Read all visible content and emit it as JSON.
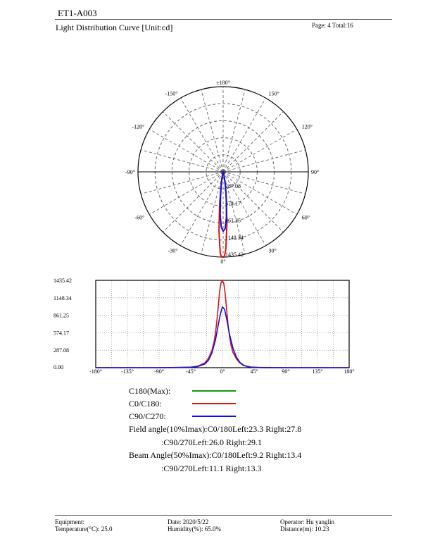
{
  "header": {
    "code": "ET1-A003",
    "title": "Light Distribution Curve [Unit:cd]",
    "page": "Page: 4  Total:16"
  },
  "chart_data": [
    {
      "type": "polar",
      "angle_labels": [
        {
          "deg": 180,
          "label": "±180°"
        },
        {
          "deg": 150,
          "label": "150°"
        },
        {
          "deg": 120,
          "label": "120°"
        },
        {
          "deg": 90,
          "label": "90°"
        },
        {
          "deg": 60,
          "label": "60°"
        },
        {
          "deg": 30,
          "label": "30°"
        },
        {
          "deg": 0,
          "label": "0°"
        },
        {
          "deg": -30,
          "label": "-30°"
        },
        {
          "deg": -60,
          "label": "-60°"
        },
        {
          "deg": -90,
          "label": "-90°"
        },
        {
          "deg": -120,
          "label": "-120°"
        },
        {
          "deg": -150,
          "label": "-150°"
        }
      ],
      "radial_labels": [
        "287.08",
        "574.17",
        "861.25",
        "1148.34",
        "1435.42"
      ],
      "rmax": 1435.42,
      "grid": true,
      "series": [
        {
          "name": "C0/C180",
          "color": "#dd1111",
          "points": [
            [
              -20,
              0
            ],
            [
              -15,
              30
            ],
            [
              -10,
              160
            ],
            [
              -8,
              300
            ],
            [
              -6,
              580
            ],
            [
              -4,
              1000
            ],
            [
              -2,
              1380
            ],
            [
              -1,
              1432
            ],
            [
              0,
              1435.42
            ],
            [
              1,
              1410
            ],
            [
              2,
              1300
            ],
            [
              4,
              900
            ],
            [
              6,
              550
            ],
            [
              8,
              320
            ],
            [
              10,
              190
            ],
            [
              14,
              70
            ],
            [
              20,
              15
            ],
            [
              25,
              0
            ]
          ]
        },
        {
          "name": "C90/C270",
          "color": "#1111dd",
          "points": [
            [
              -18,
              0
            ],
            [
              -14,
              30
            ],
            [
              -10,
              120
            ],
            [
              -8,
              230
            ],
            [
              -6,
              420
            ],
            [
              -4,
              720
            ],
            [
              -2,
              930
            ],
            [
              0,
              1000
            ],
            [
              2,
              960
            ],
            [
              4,
              780
            ],
            [
              6,
              520
            ],
            [
              8,
              320
            ],
            [
              10,
              180
            ],
            [
              14,
              60
            ],
            [
              18,
              10
            ],
            [
              22,
              0
            ]
          ]
        }
      ]
    },
    {
      "type": "line",
      "x_ticks": [
        {
          "v": -180,
          "label": "-180°"
        },
        {
          "v": -135,
          "label": "-135°"
        },
        {
          "v": -90,
          "label": "-90°"
        },
        {
          "v": -45,
          "label": "-45°"
        },
        {
          "v": 0,
          "label": "0°"
        },
        {
          "v": 45,
          "label": "45°"
        },
        {
          "v": 90,
          "label": "90°"
        },
        {
          "v": 135,
          "label": "135°"
        },
        {
          "v": 180,
          "label": "180°"
        }
      ],
      "y_ticks": [
        "0.00",
        "287.08",
        "574.17",
        "861.25",
        "1148.34",
        "1435.42"
      ],
      "xlim": [
        -180,
        180
      ],
      "ylim": [
        0,
        1435.42
      ],
      "grid": true,
      "series": [
        {
          "name": "C0/C180",
          "color": "#dd1111",
          "x": [
            -180,
            -90,
            -60,
            -45,
            -35,
            -25,
            -20,
            -15,
            -12,
            -10,
            -8,
            -6,
            -4,
            -2,
            0,
            2,
            4,
            6,
            8,
            10,
            12,
            15,
            20,
            25,
            30,
            40,
            50,
            60,
            90,
            180
          ],
          "y": [
            0,
            0,
            3,
            8,
            25,
            80,
            150,
            280,
            420,
            560,
            760,
            1000,
            1250,
            1400,
            1430,
            1380,
            1200,
            950,
            700,
            520,
            380,
            250,
            140,
            75,
            35,
            12,
            5,
            2,
            0,
            0
          ]
        },
        {
          "name": "C90/C270",
          "color": "#1111dd",
          "x": [
            -180,
            -90,
            -60,
            -45,
            -35,
            -25,
            -20,
            -15,
            -10,
            -6,
            -3,
            0,
            3,
            6,
            10,
            15,
            20,
            25,
            30,
            35,
            40,
            50,
            60,
            90,
            180
          ],
          "y": [
            0,
            0,
            3,
            8,
            20,
            60,
            120,
            240,
            450,
            700,
            880,
            1000,
            960,
            800,
            550,
            320,
            170,
            85,
            40,
            18,
            8,
            3,
            1,
            0,
            0
          ]
        }
      ]
    }
  ],
  "legend": {
    "items": [
      {
        "label": "C180(Max):",
        "color": "#119911"
      },
      {
        "label": "C0/C180:",
        "color": "#dd1111"
      },
      {
        "label": "C90/C270:",
        "color": "#1111dd"
      }
    ]
  },
  "notes": {
    "field1": "Field angle(10%Imax):C0/180Left:23.3 Right:27.8",
    "field2": ":C90/270Left:26.0 Right:29.1",
    "beam1": "Beam Angle(50%Imax):C0/180Left:9.2 Right:13.4",
    "beam2": ":C90/270Left:11.1 Right:13.3"
  },
  "footer": {
    "equipment": "Equipment:",
    "temperature": "Temperature(°C): 25.0",
    "date": "Date: 2020/5/22",
    "humidity": "Humidity(%): 65.0%",
    "operator": "Operator: Hu yanglin",
    "distance": "Distance(m): 10.23"
  }
}
